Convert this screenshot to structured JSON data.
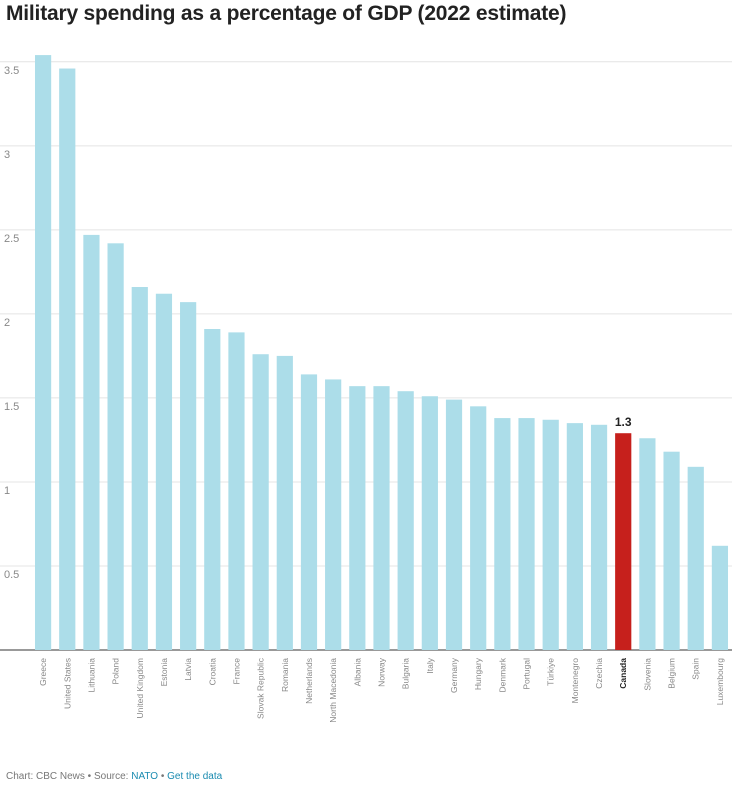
{
  "chart_data": {
    "type": "bar",
    "title": "Military spending as a percentage of GDP (2022 estimate)",
    "xlabel": "",
    "ylabel": "",
    "ylim": [
      0,
      3.6
    ],
    "yticks": [
      0.5,
      1,
      1.5,
      2,
      2.5,
      3,
      3.5
    ],
    "grid": true,
    "categories": [
      "Greece",
      "United States",
      "Lithuania",
      "Poland",
      "United Kingdom",
      "Estonia",
      "Latvia",
      "Croatia",
      "France",
      "Slovak Republic",
      "Romania",
      "Netherlands",
      "North Macedonia",
      "Albania",
      "Norway",
      "Bulgaria",
      "Italy",
      "Germany",
      "Hungary",
      "Denmark",
      "Portugal",
      "Türkiye",
      "Montenegro",
      "Czechia",
      "Canada",
      "Slovenia",
      "Belgium",
      "Spain",
      "Luxembourg"
    ],
    "values": [
      3.54,
      3.46,
      2.47,
      2.42,
      2.16,
      2.12,
      2.07,
      1.91,
      1.89,
      1.76,
      1.75,
      1.64,
      1.61,
      1.57,
      1.57,
      1.54,
      1.51,
      1.49,
      1.45,
      1.38,
      1.38,
      1.37,
      1.35,
      1.34,
      1.29,
      1.26,
      1.18,
      1.09,
      0.62
    ],
    "highlight": "Canada",
    "highlight_label": "1.3",
    "bar_color": "#acdde9",
    "highlight_color": "#c6201c"
  },
  "footer": {
    "prefix": "Chart: CBC News • Source: ",
    "source_link": "NATO",
    "separator": " • ",
    "data_link": "Get the data"
  }
}
